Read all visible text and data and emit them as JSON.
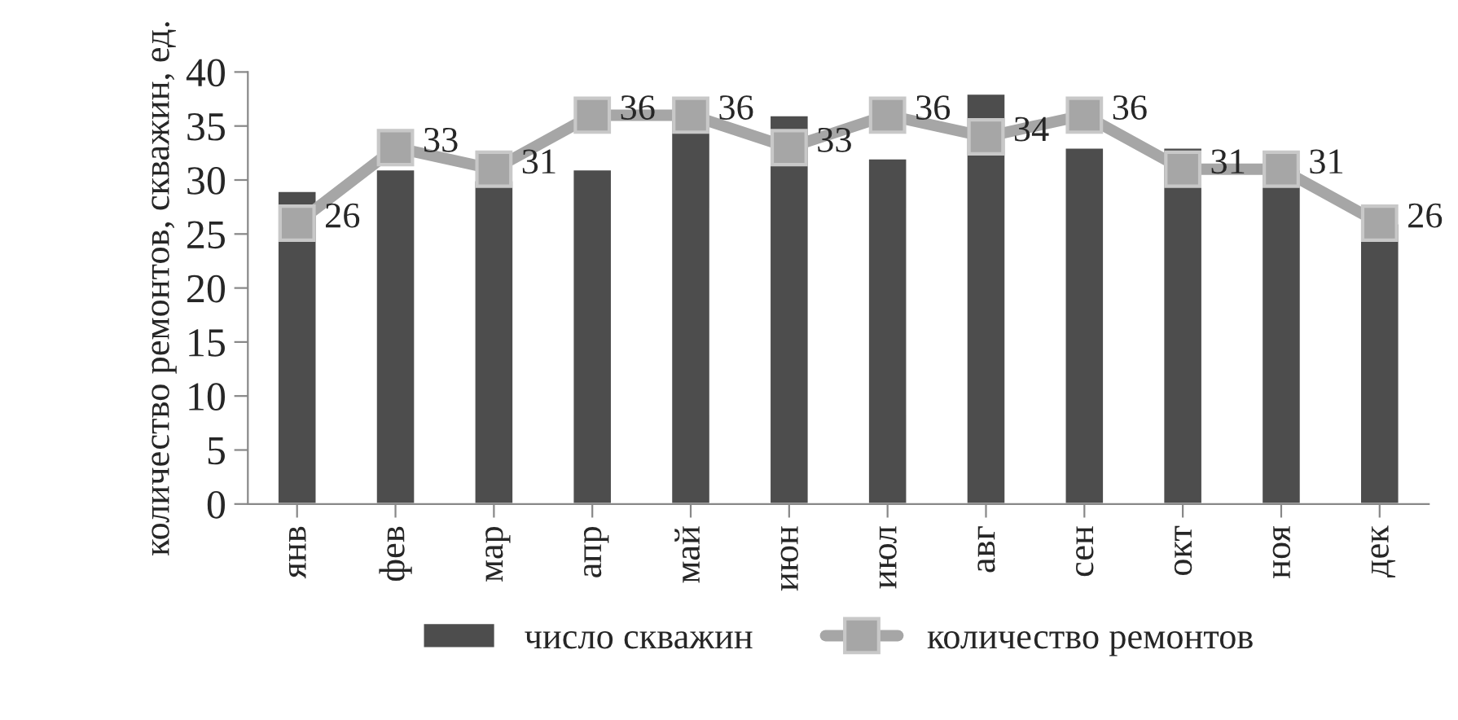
{
  "chart_data": {
    "type": "bar",
    "ylabel": "количество ремонтов, скважин, ед.",
    "categories": [
      "янв",
      "фев",
      "мар",
      "апр",
      "май",
      "июн",
      "июл",
      "авг",
      "сен",
      "окт",
      "ноя",
      "дек"
    ],
    "series": [
      {
        "name": "число скважин",
        "color": "#4d4d4d",
        "values": [
          29,
          31,
          30,
          31,
          36,
          36,
          32,
          38,
          33,
          33,
          31,
          26
        ]
      },
      {
        "name": "количество ремонтов",
        "type": "line",
        "color": "#a6a6a6",
        "marker": "square",
        "data_labels": true,
        "values": [
          26,
          33,
          31,
          36,
          36,
          33,
          36,
          34,
          36,
          31,
          31,
          26
        ]
      }
    ],
    "ylim": [
      0,
      40
    ],
    "yticks": [
      0,
      5,
      10,
      15,
      20,
      25,
      30,
      35,
      40
    ],
    "grid": false,
    "legend": "bottom"
  }
}
